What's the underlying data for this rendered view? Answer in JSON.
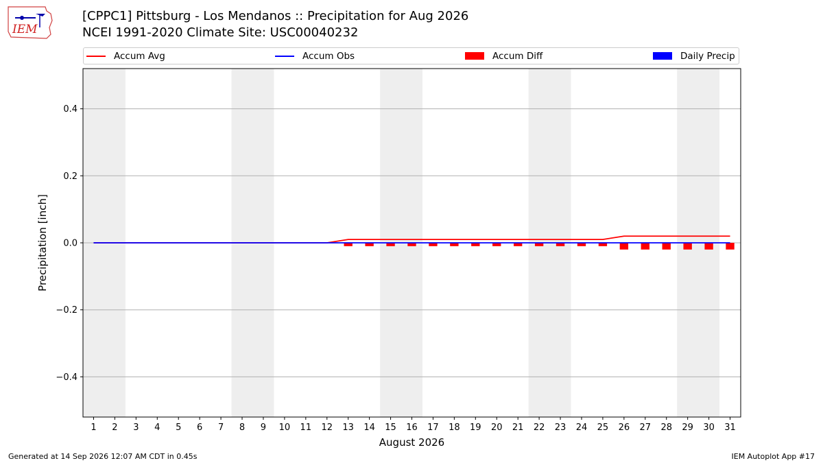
{
  "title": {
    "line1": "[CPPC1] Pittsburg - Los Mendanos :: Precipitation for Aug 2026",
    "line2": "NCEI 1991-2020 Climate Site: USC00040232"
  },
  "logo": {
    "text": "IEM",
    "icon": "iem-iowa-logo"
  },
  "legend": [
    {
      "label": "Accum Avg",
      "kind": "line",
      "color": "#ff0000"
    },
    {
      "label": "Accum Obs",
      "kind": "line",
      "color": "#0000ff"
    },
    {
      "label": "Accum Diff",
      "kind": "box",
      "color": "#ff0000"
    },
    {
      "label": "Daily Precip",
      "kind": "box",
      "color": "#0000ff"
    }
  ],
  "footer": {
    "left": "Generated at 14 Sep 2026 12:07 AM CDT in 0.45s",
    "right": "IEM Autoplot App #17"
  },
  "chart_data": {
    "type": "line",
    "xlabel": "August 2026",
    "ylabel": "Precipitation [inch]",
    "x": [
      1,
      2,
      3,
      4,
      5,
      6,
      7,
      8,
      9,
      10,
      11,
      12,
      13,
      14,
      15,
      16,
      17,
      18,
      19,
      20,
      21,
      22,
      23,
      24,
      25,
      26,
      27,
      28,
      29,
      30,
      31
    ],
    "xlim": [
      0.5,
      31.5
    ],
    "ylim": [
      -0.52,
      0.52
    ],
    "yticks": [
      -0.4,
      -0.2,
      0.0,
      0.2,
      0.4
    ],
    "ytick_labels": [
      "−0.4",
      "−0.2",
      "0.0",
      "0.2",
      "0.4"
    ],
    "grid": true,
    "shaded_weekends": [
      [
        1,
        2
      ],
      [
        8,
        9
      ],
      [
        15,
        16
      ],
      [
        22,
        23
      ],
      [
        29,
        30
      ]
    ],
    "series": [
      {
        "name": "Accum Avg",
        "type": "line",
        "color": "#ff0000",
        "values": [
          0,
          0,
          0,
          0,
          0,
          0,
          0,
          0,
          0,
          0,
          0,
          0,
          0.01,
          0.01,
          0.01,
          0.01,
          0.01,
          0.01,
          0.01,
          0.01,
          0.01,
          0.01,
          0.01,
          0.01,
          0.01,
          0.02,
          0.02,
          0.02,
          0.02,
          0.02,
          0.02
        ]
      },
      {
        "name": "Accum Obs",
        "type": "line",
        "color": "#0000ff",
        "values": [
          0,
          0,
          0,
          0,
          0,
          0,
          0,
          0,
          0,
          0,
          0,
          0,
          0,
          0,
          0,
          0,
          0,
          0,
          0,
          0,
          0,
          0,
          0,
          0,
          0,
          0,
          0,
          0,
          0,
          0,
          0
        ]
      },
      {
        "name": "Accum Diff",
        "type": "bar",
        "color": "#ff0000",
        "values": [
          0,
          0,
          0,
          0,
          0,
          0,
          0,
          0,
          0,
          0,
          0,
          0,
          -0.01,
          -0.01,
          -0.01,
          -0.01,
          -0.01,
          -0.01,
          -0.01,
          -0.01,
          -0.01,
          -0.01,
          -0.01,
          -0.01,
          -0.01,
          -0.02,
          -0.02,
          -0.02,
          -0.02,
          -0.02,
          -0.02
        ]
      },
      {
        "name": "Daily Precip",
        "type": "bar",
        "color": "#0000ff",
        "values": [
          0,
          0,
          0,
          0,
          0,
          0,
          0,
          0,
          0,
          0,
          0,
          0,
          0,
          0,
          0,
          0,
          0,
          0,
          0,
          0,
          0,
          0,
          0,
          0,
          0,
          0,
          0,
          0,
          0,
          0,
          0
        ]
      }
    ]
  }
}
